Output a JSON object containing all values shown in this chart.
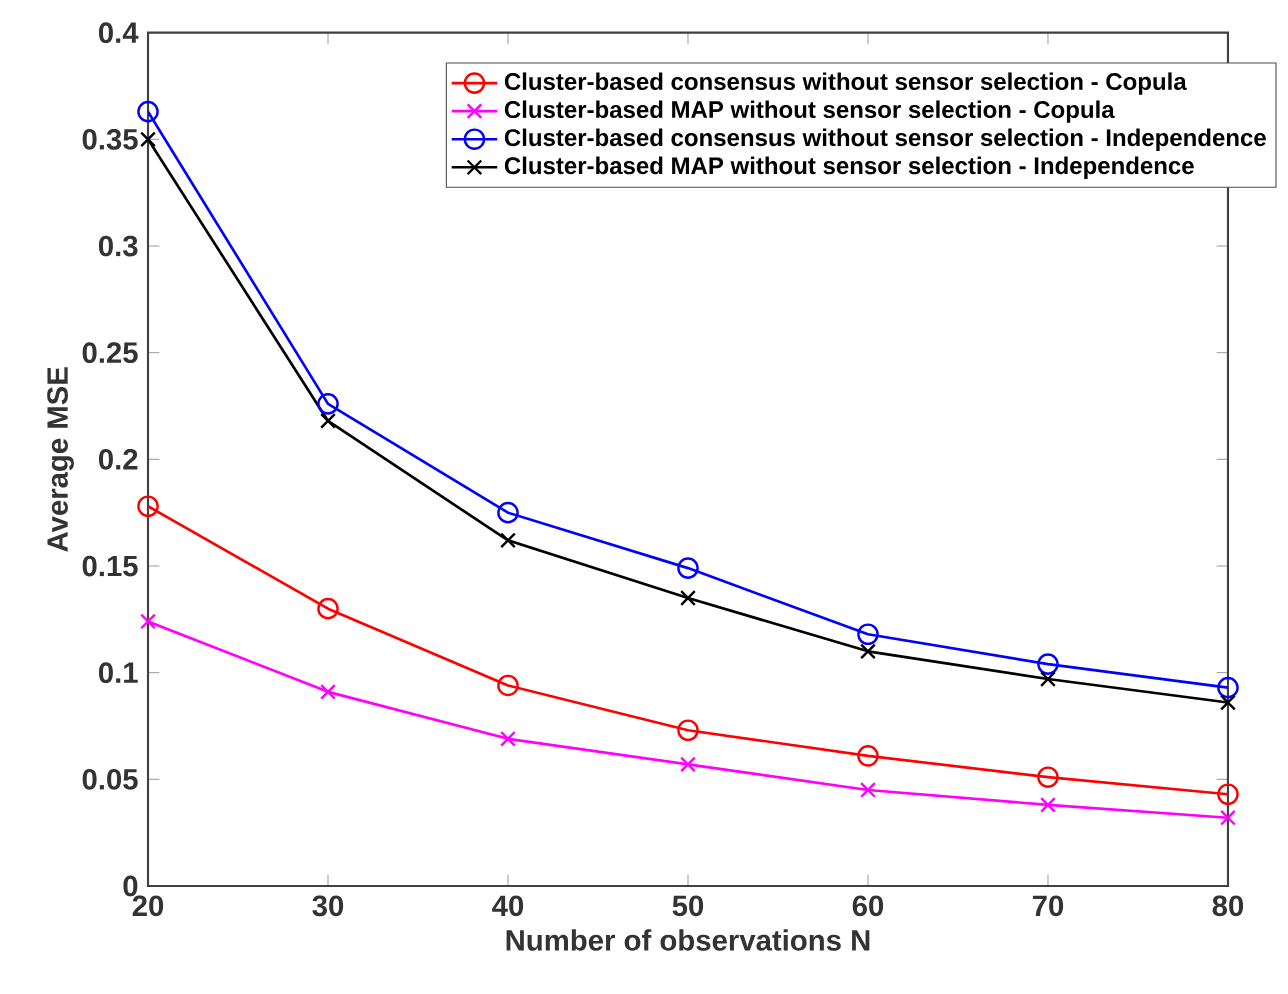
{
  "chart_data": {
    "type": "line",
    "xlabel": "Number of observations N",
    "ylabel": "Average MSE",
    "x": [
      20,
      30,
      40,
      50,
      60,
      70,
      80
    ],
    "series": [
      {
        "name": "Cluster-based consensus without sensor selection - Copula",
        "color": "#ff0000",
        "marker": "circle",
        "values": [
          0.178,
          0.13,
          0.094,
          0.073,
          0.061,
          0.051,
          0.043
        ]
      },
      {
        "name": "Cluster-based MAP without sensor selection - Copula",
        "color": "#ff00ff",
        "marker": "cross",
        "values": [
          0.124,
          0.091,
          0.069,
          0.057,
          0.045,
          0.038,
          0.032
        ]
      },
      {
        "name": "Cluster-based consensus without sensor selection - Independence",
        "color": "#0000ff",
        "marker": "circle",
        "values": [
          0.363,
          0.226,
          0.175,
          0.149,
          0.118,
          0.104,
          0.093
        ]
      },
      {
        "name": "Cluster-based MAP without sensor selection - Independence",
        "color": "#000000",
        "marker": "cross",
        "values": [
          0.35,
          0.218,
          0.162,
          0.135,
          0.11,
          0.097,
          0.086
        ]
      }
    ],
    "xlim": [
      20,
      80
    ],
    "ylim": [
      0,
      0.4
    ],
    "xticks": [
      20,
      30,
      40,
      50,
      60,
      70,
      80
    ],
    "yticks": [
      0,
      0.05,
      0.1,
      0.15,
      0.2,
      0.25,
      0.3,
      0.35,
      0.4
    ],
    "grid": false,
    "legend": "top right",
    "line_style": "solid"
  }
}
